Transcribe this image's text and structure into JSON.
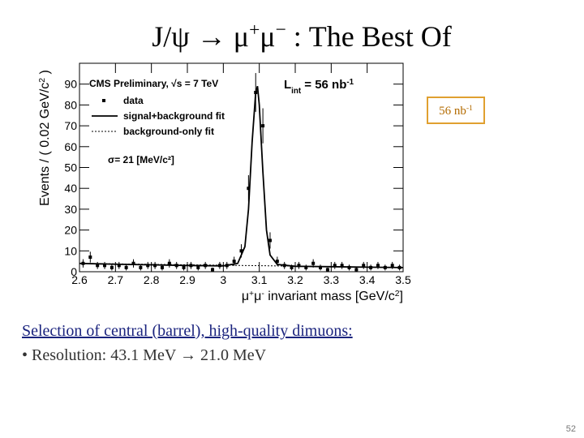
{
  "slide": {
    "title": [
      "J/ψ → μ",
      "+",
      "μ",
      "−",
      " : The Best Of"
    ],
    "lumi_box": [
      "56 nb",
      "-1"
    ],
    "heading": "Selection of central (barrel), high-quality dimuons:",
    "bullet": "• Resolution: 43.1 MeV → 21.0 MeV",
    "page_number": "52"
  },
  "chart_data": {
    "type": "scatter",
    "ylabel": [
      "Events / ( 0.02 GeV/c",
      "2",
      " )"
    ],
    "xlabel": [
      "μ",
      "+",
      "μ",
      "-",
      " invariant mass [GeV/c",
      "2",
      "]"
    ],
    "annotations": {
      "experiment": "CMS Preliminary, √s = 7 TeV",
      "lumi": [
        "L",
        "int",
        " = 56 nb",
        "-1"
      ],
      "resolution": "σ= 21 [MeV/c²]"
    },
    "xlim": [
      2.6,
      3.5
    ],
    "ylim": [
      0,
      100
    ],
    "xticks": [
      2.6,
      2.7,
      2.8,
      2.9,
      3,
      3.1,
      3.2,
      3.3,
      3.4,
      3.5
    ],
    "yticks": [
      0,
      10,
      20,
      30,
      40,
      50,
      60,
      70,
      80,
      90
    ],
    "series": [
      {
        "name": "data",
        "kind": "points",
        "color": "#000000",
        "x": [
          2.61,
          2.63,
          2.65,
          2.67,
          2.69,
          2.71,
          2.73,
          2.75,
          2.77,
          2.79,
          2.81,
          2.83,
          2.85,
          2.87,
          2.89,
          2.91,
          2.93,
          2.95,
          2.97,
          2.99,
          3.01,
          3.03,
          3.05,
          3.07,
          3.09,
          3.11,
          3.13,
          3.15,
          3.17,
          3.19,
          3.21,
          3.23,
          3.25,
          3.27,
          3.29,
          3.31,
          3.33,
          3.35,
          3.37,
          3.39,
          3.41,
          3.43,
          3.45,
          3.47,
          3.49
        ],
        "values": [
          4,
          7,
          3,
          3,
          2,
          3,
          2,
          4,
          2,
          3,
          3,
          2,
          4,
          3,
          2,
          3,
          2,
          3,
          1,
          3,
          3,
          5,
          10,
          40,
          86,
          70,
          15,
          5,
          3,
          2,
          3,
          2,
          4,
          2,
          1,
          3,
          3,
          2,
          1,
          3,
          2,
          3,
          2,
          3,
          2
        ],
        "errors": [
          2,
          2.6,
          1.7,
          1.7,
          1.4,
          1.7,
          1.4,
          2,
          1.4,
          1.7,
          1.7,
          1.4,
          2,
          1.7,
          1.4,
          1.7,
          1.4,
          1.7,
          1,
          1.7,
          1.7,
          2.2,
          3.2,
          6.3,
          9.3,
          8.4,
          3.9,
          2.2,
          1.7,
          1.4,
          1.7,
          1.4,
          2,
          1.4,
          1,
          1.7,
          1.7,
          1.4,
          1,
          1.7,
          1.4,
          1.7,
          1.4,
          1.7,
          1.4
        ]
      },
      {
        "name": "signal+background fit",
        "kind": "line",
        "color": "#000000",
        "linestyle": "solid",
        "x": [
          2.6,
          2.7,
          2.8,
          2.9,
          3.0,
          3.04,
          3.06,
          3.07,
          3.08,
          3.09,
          3.095,
          3.1,
          3.11,
          3.12,
          3.13,
          3.15,
          3.2,
          3.3,
          3.4,
          3.5
        ],
        "values": [
          4,
          3.6,
          3.3,
          3,
          2.8,
          4,
          12,
          30,
          62,
          86,
          89,
          80,
          48,
          20,
          8,
          3.5,
          2.6,
          2.4,
          2.2,
          2
        ]
      },
      {
        "name": "background-only fit",
        "kind": "line",
        "color": "#000000",
        "linestyle": "dotted",
        "x": [
          2.6,
          3.5
        ],
        "values": [
          4,
          2
        ]
      }
    ]
  }
}
